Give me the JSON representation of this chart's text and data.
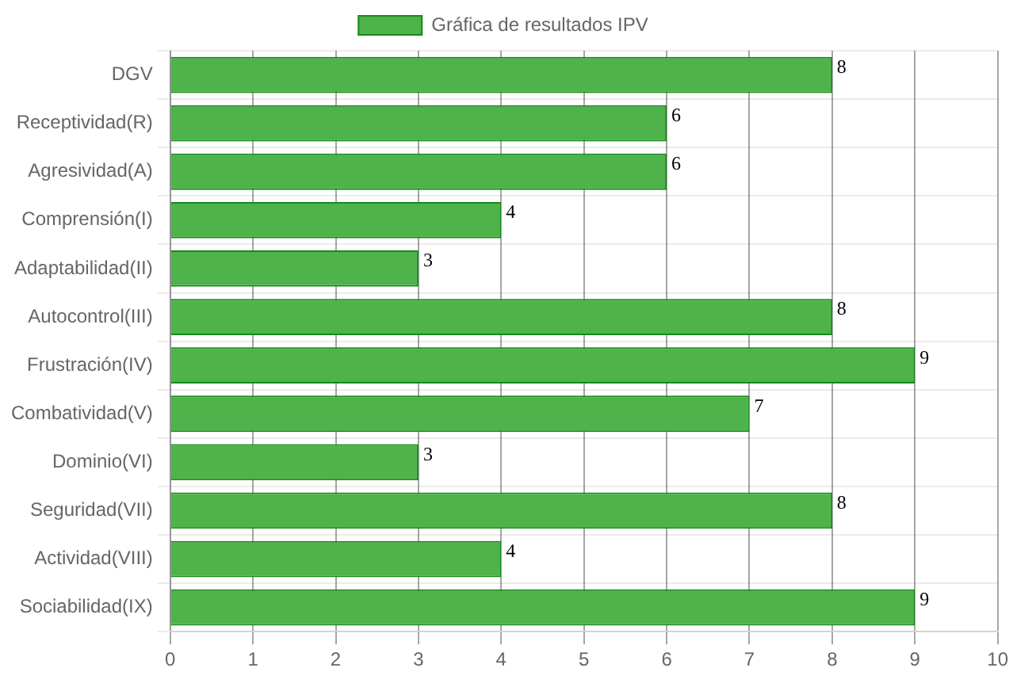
{
  "chart_data": {
    "type": "bar",
    "orientation": "horizontal",
    "categories": [
      "DGV",
      "Receptividad(R)",
      "Agresividad(A)",
      "Comprensión(I)",
      "Adaptabilidad(II)",
      "Autocontrol(III)",
      "Frustración(IV)",
      "Combatividad(V)",
      "Dominio(VI)",
      "Seguridad(VII)",
      "Actividad(VIII)",
      "Sociabilidad(IX)"
    ],
    "series": [
      {
        "name": "Gráfica de resultados IPV",
        "color": "#4db34a",
        "values": [
          8,
          6,
          6,
          4,
          3,
          8,
          9,
          7,
          3,
          8,
          4,
          9
        ]
      }
    ],
    "xlim": [
      0,
      10
    ],
    "xticks": [
      0,
      1,
      2,
      3,
      4,
      5,
      6,
      7,
      8,
      9,
      10
    ],
    "grid": true,
    "legend": "top",
    "data_labels": true
  }
}
